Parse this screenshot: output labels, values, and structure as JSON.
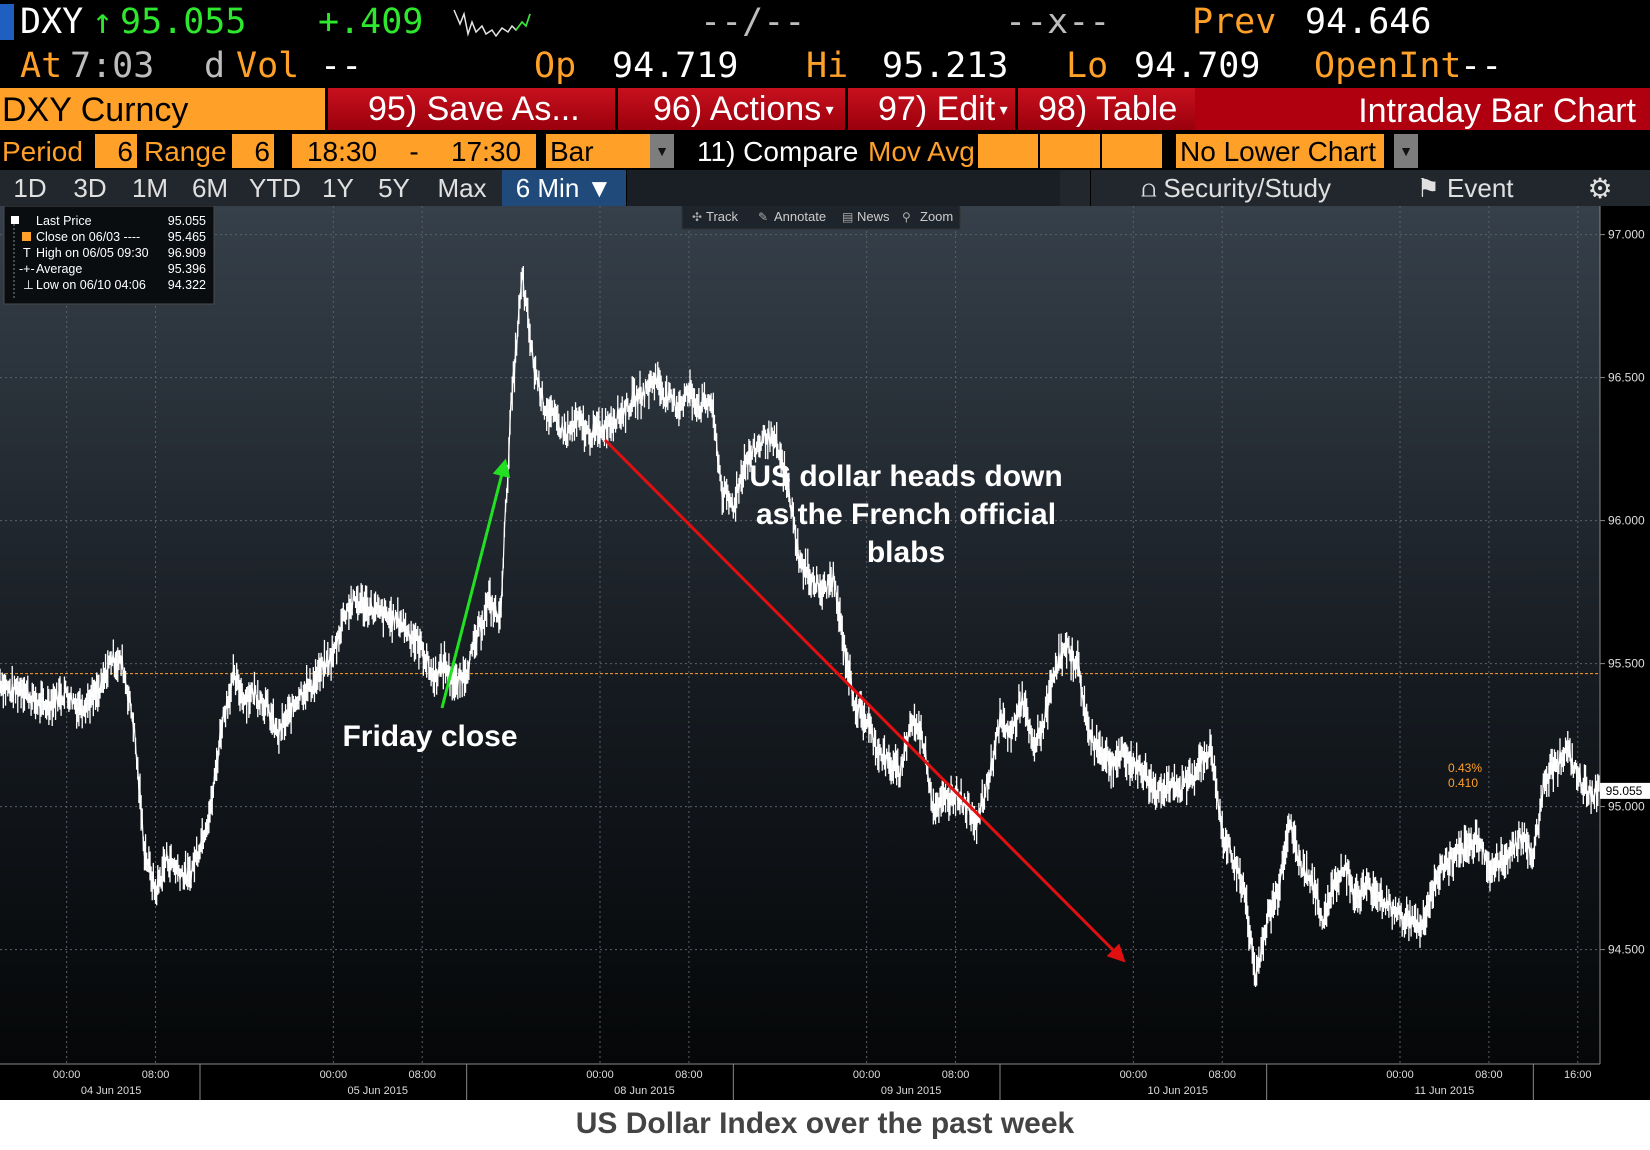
{
  "header": {
    "ticker": "DXY",
    "arrow": "↑",
    "last": "95.055",
    "change": "+.409",
    "bidask": "--/--",
    "size": "--x--",
    "prev_label": "Prev",
    "prev_value": "94.646",
    "at_label": "At",
    "time": "7:03",
    "dvol_d": "d",
    "dvol_label": "Vol",
    "dvol_value": "--",
    "op_label": "Op",
    "op_value": "94.719",
    "hi_label": "Hi",
    "hi_value": "95.213",
    "lo_label": "Lo",
    "lo_value": "94.709",
    "openint_label": "OpenInt",
    "openint_value": "--"
  },
  "toolbar": {
    "security": "DXY Curncy",
    "save": "95) Save As...",
    "actions": "96) Actions",
    "edit": "97) Edit",
    "table": "98) Table",
    "title": "Intraday Bar Chart"
  },
  "options": {
    "period_label": "Period",
    "period_value": "6",
    "range_label": "Range",
    "range_value": "6",
    "start_time": "18:30",
    "dash": "-",
    "end_time": "17:30",
    "type": "Bar",
    "compare": "11) Compare",
    "movavg": "Mov Avg",
    "lower": "No Lower Chart"
  },
  "tabs": {
    "d1": "1D",
    "d3": "3D",
    "m1": "1M",
    "m6": "6M",
    "ytd": "YTD",
    "y1": "1Y",
    "y5": "5Y",
    "max": "Max",
    "interval": "6 Min ▼",
    "collapse": "«",
    "security_study": "Security/Study",
    "event": "Event"
  },
  "chart_tools": {
    "track": "Track",
    "annotate": "Annotate",
    "news": "News",
    "zoom": "Zoom"
  },
  "legend": [
    {
      "label": "Last Price",
      "value": "95.055"
    },
    {
      "label": "Close on 06/03 ----",
      "value": "95.465"
    },
    {
      "label": "High on 06/05 09:30",
      "value": "96.909"
    },
    {
      "label": "Average",
      "value": "95.396"
    },
    {
      "label": "Low on 06/10 04:06",
      "value": "94.322"
    }
  ],
  "annotations": {
    "friday": "Friday close",
    "heads_down_1": "US dollar heads down",
    "heads_down_2": "as the French official",
    "heads_down_3": "blabs",
    "pct": "0.43%",
    "chg": "0.410",
    "last_tag": "95.055"
  },
  "colors": {
    "background": "#000000",
    "price_line": "#ffffff",
    "close_line": "#ffa028",
    "green_arrow": "#22e022",
    "red_arrow": "#e01010",
    "ticker_green": "#2ee82e",
    "header_orange": "#ffa028"
  },
  "caption": "US Dollar Index over the past week",
  "chart_data": {
    "type": "bar",
    "title": "",
    "xlabel": "",
    "ylabel": "",
    "ylim": [
      94.1,
      97.1
    ],
    "yticks": [
      94.5,
      95.0,
      95.5,
      96.0,
      96.5,
      97.0
    ],
    "ytick_labels": [
      "94.500",
      "95.000",
      "95.500",
      "96.000",
      "96.500",
      "97.000"
    ],
    "xlim_hours": [
      -6,
      138
    ],
    "x_ticks": [
      {
        "h": 0,
        "label": "00:00"
      },
      {
        "h": 8,
        "label": "08:00"
      },
      {
        "h": 24,
        "label": "00:00"
      },
      {
        "h": 32,
        "label": "08:00"
      },
      {
        "h": 48,
        "label": "00:00"
      },
      {
        "h": 56,
        "label": "08:00"
      },
      {
        "h": 72,
        "label": "00:00"
      },
      {
        "h": 80,
        "label": "08:00"
      },
      {
        "h": 96,
        "label": "00:00"
      },
      {
        "h": 104,
        "label": "08:00"
      },
      {
        "h": 120,
        "label": "00:00"
      },
      {
        "h": 128,
        "label": "08:00"
      },
      {
        "h": 136,
        "label": "16:00"
      }
    ],
    "x_dates": [
      {
        "h": 4,
        "label": "04 Jun 2015"
      },
      {
        "h": 28,
        "label": "05 Jun 2015"
      },
      {
        "h": 52,
        "label": "08 Jun 2015"
      },
      {
        "h": 76,
        "label": "09 Jun 2015"
      },
      {
        "h": 100,
        "label": "10 Jun 2015"
      },
      {
        "h": 124,
        "label": "11 Jun 2015"
      }
    ],
    "reference_close": 95.465,
    "last_price": 95.055,
    "series": [
      {
        "name": "Last Price",
        "points": [
          [
            -6,
            95.44
          ],
          [
            -5,
            95.4
          ],
          [
            -4,
            95.42
          ],
          [
            -3,
            95.37
          ],
          [
            -2,
            95.35
          ],
          [
            -1,
            95.38
          ],
          [
            0,
            95.4
          ],
          [
            1,
            95.35
          ],
          [
            2,
            95.37
          ],
          [
            3,
            95.4
          ],
          [
            4,
            95.52
          ],
          [
            5,
            95.5
          ],
          [
            6,
            95.3
          ],
          [
            7,
            94.85
          ],
          [
            8,
            94.7
          ],
          [
            9,
            94.82
          ],
          [
            10,
            94.78
          ],
          [
            11,
            94.75
          ],
          [
            12,
            94.87
          ],
          [
            13,
            95.0
          ],
          [
            14,
            95.3
          ],
          [
            15,
            95.45
          ],
          [
            16,
            95.38
          ],
          [
            17,
            95.4
          ],
          [
            18,
            95.35
          ],
          [
            19,
            95.25
          ],
          [
            20,
            95.32
          ],
          [
            21,
            95.4
          ],
          [
            22,
            95.42
          ],
          [
            23,
            95.48
          ],
          [
            24,
            95.53
          ],
          [
            25,
            95.68
          ],
          [
            26,
            95.72
          ],
          [
            27,
            95.7
          ],
          [
            28,
            95.68
          ],
          [
            29,
            95.66
          ],
          [
            30,
            95.65
          ],
          [
            31,
            95.6
          ],
          [
            32,
            95.55
          ],
          [
            33,
            95.45
          ],
          [
            34,
            95.5
          ],
          [
            35,
            95.42
          ],
          [
            36,
            95.48
          ],
          [
            37,
            95.6
          ],
          [
            38,
            95.72
          ],
          [
            39,
            95.65
          ],
          [
            40,
            96.4
          ],
          [
            41,
            96.85
          ],
          [
            42,
            96.55
          ],
          [
            43,
            96.4
          ],
          [
            44,
            96.35
          ],
          [
            45,
            96.3
          ],
          [
            46,
            96.35
          ],
          [
            47,
            96.3
          ],
          [
            48,
            96.32
          ],
          [
            49,
            96.35
          ],
          [
            50,
            96.38
          ],
          [
            51,
            96.42
          ],
          [
            52,
            96.45
          ],
          [
            53,
            96.5
          ],
          [
            54,
            96.43
          ],
          [
            55,
            96.4
          ],
          [
            56,
            96.45
          ],
          [
            57,
            96.4
          ],
          [
            58,
            96.42
          ],
          [
            59,
            96.1
          ],
          [
            60,
            96.05
          ],
          [
            61,
            96.2
          ],
          [
            62,
            96.25
          ],
          [
            63,
            96.3
          ],
          [
            64,
            96.25
          ],
          [
            65,
            96.1
          ],
          [
            66,
            95.85
          ],
          [
            67,
            95.8
          ],
          [
            68,
            95.75
          ],
          [
            69,
            95.8
          ],
          [
            70,
            95.55
          ],
          [
            71,
            95.35
          ],
          [
            72,
            95.3
          ],
          [
            73,
            95.2
          ],
          [
            74,
            95.15
          ],
          [
            75,
            95.12
          ],
          [
            76,
            95.3
          ],
          [
            77,
            95.25
          ],
          [
            78,
            95.0
          ],
          [
            79,
            95.02
          ],
          [
            80,
            95.05
          ],
          [
            81,
            95.0
          ],
          [
            82,
            94.95
          ],
          [
            83,
            95.1
          ],
          [
            84,
            95.3
          ],
          [
            85,
            95.25
          ],
          [
            86,
            95.38
          ],
          [
            87,
            95.2
          ],
          [
            88,
            95.3
          ],
          [
            89,
            95.5
          ],
          [
            90,
            95.55
          ],
          [
            91,
            95.5
          ],
          [
            92,
            95.25
          ],
          [
            93,
            95.2
          ],
          [
            94,
            95.15
          ],
          [
            95,
            95.18
          ],
          [
            96,
            95.15
          ],
          [
            97,
            95.12
          ],
          [
            98,
            95.05
          ],
          [
            99,
            95.08
          ],
          [
            100,
            95.05
          ],
          [
            101,
            95.1
          ],
          [
            102,
            95.15
          ],
          [
            103,
            95.2
          ],
          [
            104,
            94.9
          ],
          [
            105,
            94.82
          ],
          [
            106,
            94.7
          ],
          [
            107,
            94.4
          ],
          [
            108,
            94.6
          ],
          [
            109,
            94.7
          ],
          [
            110,
            94.95
          ],
          [
            111,
            94.8
          ],
          [
            112,
            94.75
          ],
          [
            113,
            94.6
          ],
          [
            114,
            94.72
          ],
          [
            115,
            94.8
          ],
          [
            116,
            94.68
          ],
          [
            117,
            94.72
          ],
          [
            118,
            94.7
          ],
          [
            119,
            94.65
          ],
          [
            120,
            94.62
          ],
          [
            121,
            94.6
          ],
          [
            122,
            94.58
          ],
          [
            123,
            94.72
          ],
          [
            124,
            94.8
          ],
          [
            125,
            94.82
          ],
          [
            126,
            94.85
          ],
          [
            127,
            94.9
          ],
          [
            128,
            94.78
          ],
          [
            129,
            94.8
          ],
          [
            130,
            94.85
          ],
          [
            131,
            94.9
          ],
          [
            132,
            94.82
          ],
          [
            133,
            95.1
          ],
          [
            134,
            95.15
          ],
          [
            135,
            95.2
          ],
          [
            136,
            95.1
          ],
          [
            137,
            95.05
          ],
          [
            138,
            95.055
          ]
        ]
      }
    ]
  }
}
